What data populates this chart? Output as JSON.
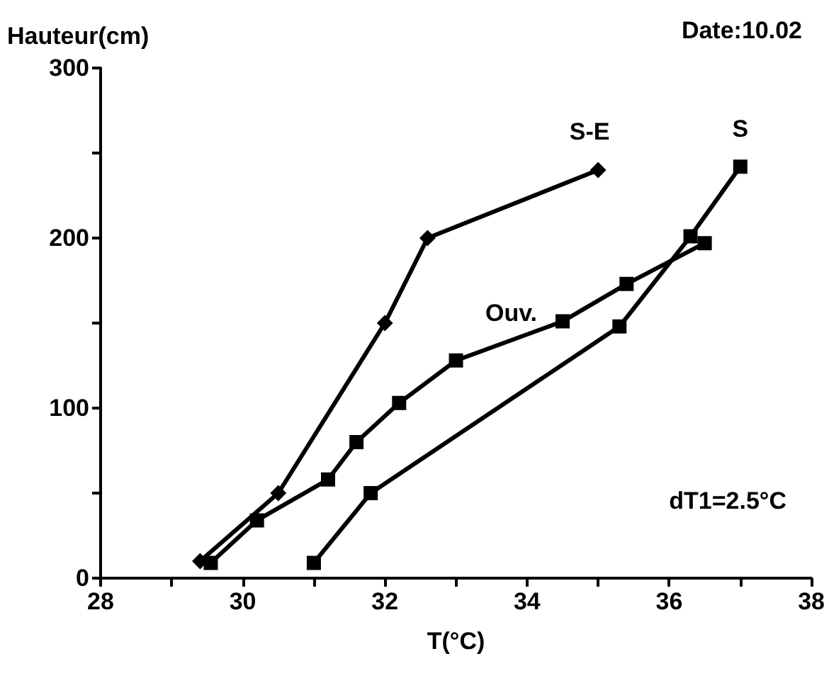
{
  "chart_data": {
    "type": "line",
    "title": "Date:10.02",
    "ylabel": "Hauteur(cm)",
    "xlabel": "T(°C)",
    "xlim": [
      28,
      38
    ],
    "xticks": [
      28,
      {
        "value": 29,
        "label": null
      },
      30,
      {
        "value": 31,
        "label": null
      },
      32,
      {
        "value": 33,
        "label": null
      },
      34,
      {
        "value": 35,
        "label": null
      },
      36,
      {
        "value": 37,
        "label": null
      },
      38
    ],
    "ylim": [
      0,
      300
    ],
    "yticks": [
      0,
      {
        "value": 50,
        "label": null
      },
      100,
      {
        "value": 150,
        "label": null
      },
      200,
      {
        "value": 250,
        "label": null
      },
      300
    ],
    "grid": false,
    "line_style": "solid",
    "series": [
      {
        "name": "S-E",
        "color": "#000000",
        "marker": "diamond",
        "x": [
          29.4,
          30.5,
          32,
          32.6,
          35
        ],
        "values": [
          10,
          50,
          150,
          200,
          240
        ]
      },
      {
        "name": "Ouv.",
        "color": "#000000",
        "marker": "square",
        "x": [
          29.55,
          30.2,
          31.2,
          31.6,
          32.2,
          33,
          34.5,
          35.4,
          36.5
        ],
        "values": [
          9,
          34,
          58,
          80,
          103,
          128,
          151,
          173,
          197
        ]
      },
      {
        "name": "S",
        "color": "#000000",
        "marker": "square",
        "x": [
          31,
          31.8,
          35.3,
          36.3,
          37
        ],
        "values": [
          9,
          50,
          148,
          201,
          242
        ]
      }
    ],
    "annotations": [
      "dT1=2.5°C"
    ]
  }
}
